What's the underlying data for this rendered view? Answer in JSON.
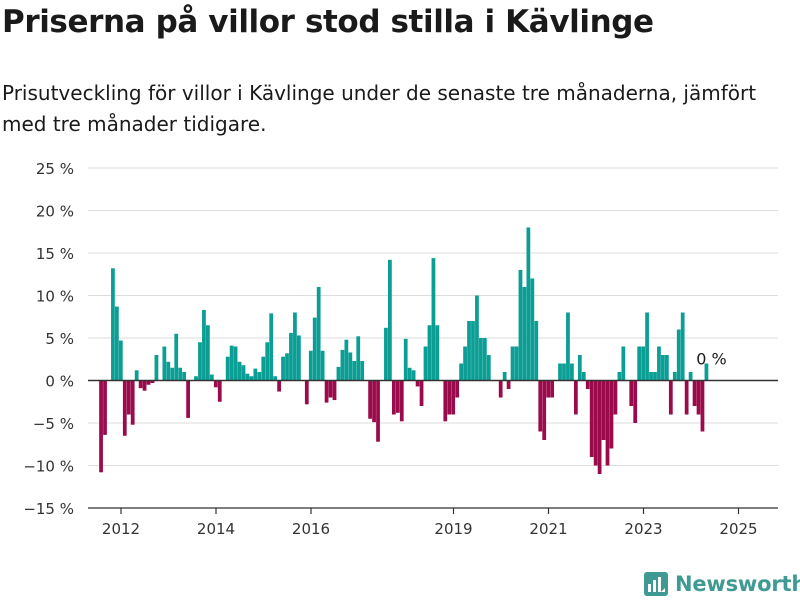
{
  "header": {
    "title": "Priserna på villor stod stilla i Kävlinge",
    "subtitle": "Prisutveckling för villor i Kävlinge under de senaste tre månaderna, jämfört med tre månader tidigare."
  },
  "brand": {
    "name": "Newsworthy",
    "icon": "newsworthy-logo-icon",
    "color": "#3f9a93"
  },
  "colors": {
    "positive": "#0a9e95",
    "negative": "#9b0a4a",
    "grid": "#dddddd",
    "zero_line": "#333333"
  },
  "chart_data": {
    "type": "bar",
    "title": "Priserna på villor stod stilla i Kävlinge",
    "ylim": [
      -15,
      25
    ],
    "y_ticks": [
      25,
      20,
      15,
      10,
      5,
      0,
      -5,
      -10,
      -15
    ],
    "y_tick_labels": [
      "25 %",
      "20 %",
      "15 %",
      "10 %",
      "5 %",
      "0 %",
      "−5 %",
      "−10 %",
      "−15 %"
    ],
    "x_ticks": [
      2012,
      2014,
      2016,
      2019,
      2021,
      2023,
      2025
    ],
    "x_tick_labels": [
      "2012",
      "2014",
      "2016",
      "2019",
      "2021",
      "2023",
      "2025"
    ],
    "x_start": 2011.58,
    "x_step": 0.0833,
    "grid": true,
    "annotation": {
      "text": "0 %",
      "value": 0
    },
    "values": [
      -10.8,
      -6.4,
      0,
      13.2,
      8.7,
      4.7,
      -6.5,
      -4.0,
      -5.2,
      1.2,
      -0.9,
      -1.2,
      -0.5,
      -0.3,
      3.0,
      0,
      4.0,
      2.2,
      1.5,
      5.5,
      1.5,
      1.0,
      -4.4,
      0,
      0.5,
      4.5,
      8.3,
      6.5,
      0.7,
      -0.8,
      -2.5,
      0,
      2.8,
      4.1,
      4.0,
      2.2,
      1.8,
      0.8,
      0.5,
      1.4,
      1.0,
      2.8,
      4.5,
      7.9,
      0.5,
      -1.3,
      2.8,
      3.2,
      5.6,
      8.0,
      5.3,
      0,
      -2.8,
      3.5,
      7.4,
      11.0,
      3.5,
      -2.6,
      -2.0,
      -2.3,
      1.6,
      3.6,
      4.8,
      3.3,
      2.3,
      5.2,
      2.3,
      0,
      -4.5,
      -4.9,
      -7.2,
      0,
      6.2,
      14.2,
      -4.0,
      -3.8,
      -4.8,
      4.9,
      1.5,
      1.2,
      -0.7,
      -3.0,
      4.0,
      6.5,
      14.4,
      6.5,
      0,
      -4.8,
      -4.0,
      -4.0,
      -2.0,
      2.0,
      4.0,
      7.0,
      7.0,
      10.0,
      5.0,
      5.0,
      3.0,
      0,
      0,
      -2.0,
      1.0,
      -1.0,
      4.0,
      4.0,
      13.0,
      11.0,
      18.0,
      12.0,
      7.0,
      -6.0,
      -7.0,
      -2.0,
      -2.0,
      0,
      2.0,
      2.0,
      8.0,
      2.0,
      -4.0,
      3.0,
      1.0,
      -1.0,
      -9.0,
      -10.0,
      -11.0,
      -7.0,
      -10.0,
      -8.0,
      -4.0,
      1.0,
      4.0,
      0,
      -3.0,
      -5.0,
      4.0,
      4.0,
      8.0,
      1.0,
      1.0,
      4.0,
      3.0,
      3.0,
      -4.0,
      1.0,
      6.0,
      8.0,
      -4.0,
      1.0,
      -3.0,
      -4.0,
      -6.0,
      2.0
    ]
  }
}
